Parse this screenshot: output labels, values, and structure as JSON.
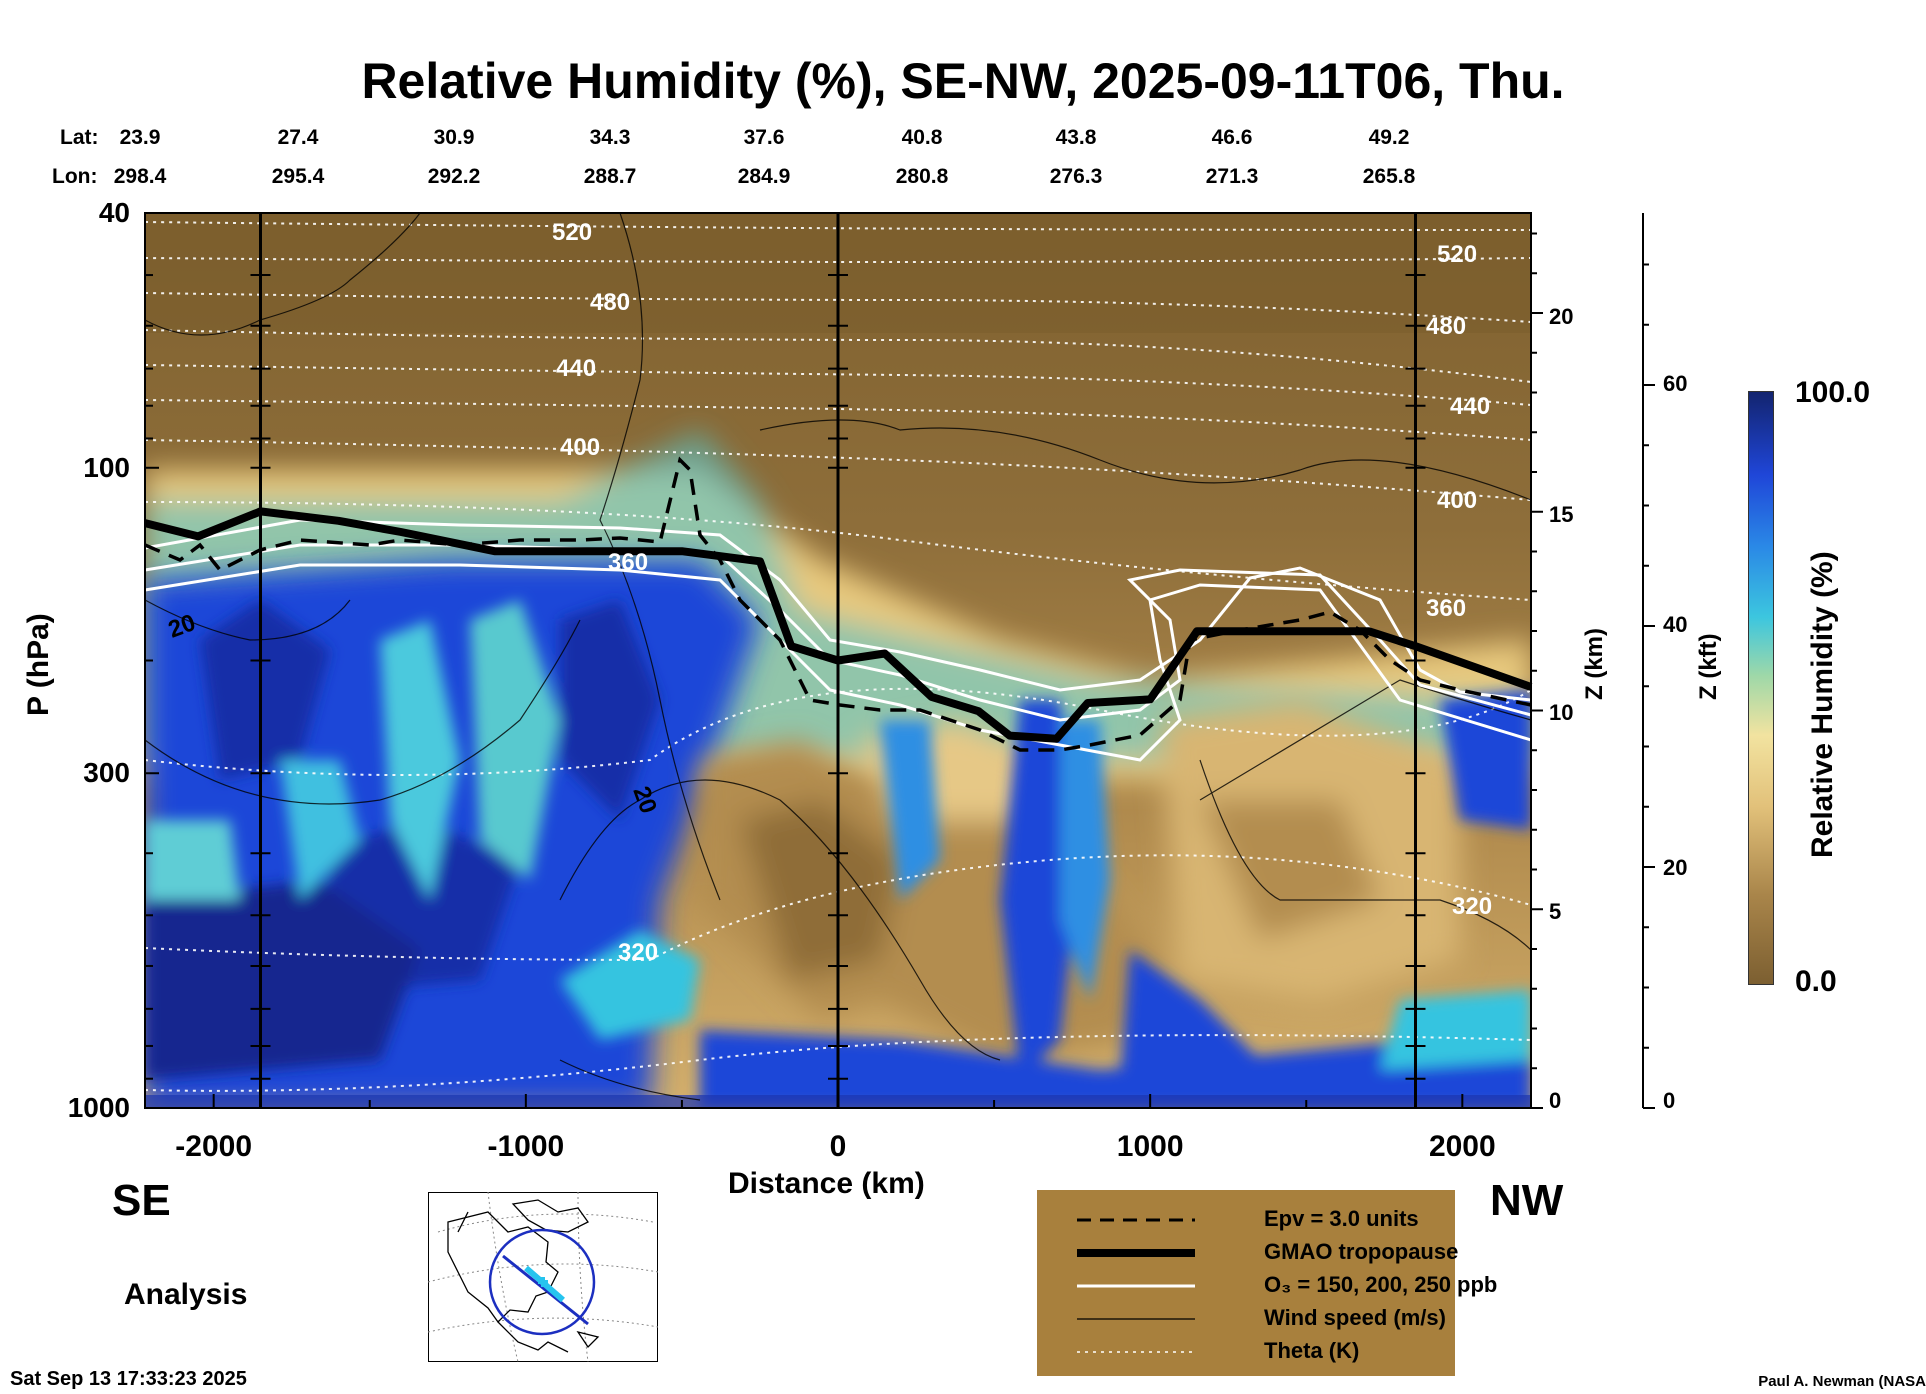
{
  "title": "Relative Humidity (%), SE-NW, 2025-09-11T06, Thu.",
  "lat_label": "Lat:",
  "lon_label": "Lon:",
  "lat_values": [
    "23.9",
    "27.4",
    "30.9",
    "34.3",
    "37.6",
    "40.8",
    "43.8",
    "46.6",
    "49.2"
  ],
  "lon_values": [
    "298.4",
    "295.4",
    "292.2",
    "288.7",
    "284.9",
    "280.8",
    "276.3",
    "271.3",
    "265.8"
  ],
  "left_direction": "SE",
  "right_direction": "NW",
  "analysis_label": "Analysis",
  "timestamp": "Sat Sep 13 17:33:23 2025",
  "credit": "Paul A. Newman (NASA",
  "colors": {
    "dry": "#8b6a35",
    "mid_dry": "#c9a25e",
    "pale": "#e9cf8c",
    "cyan": "#35c8e0",
    "blue": "#1f46d8",
    "dark_blue": "#10228f",
    "legend_bg": "#a8803d"
  },
  "chart_data": {
    "type": "heatmap",
    "variable": "Relative Humidity (%)",
    "xlabel": "Distance (km)",
    "ylabel": "P (hPa)",
    "right_axis_1_label": "Z (km)",
    "right_axis_2_label": "Z (kft)",
    "x_ticks": [
      "-2000",
      "-1000",
      "0",
      "1000",
      "2000"
    ],
    "xlim": [
      -2220,
      2220
    ],
    "y_ticks": [
      "40",
      "100",
      "300",
      "1000"
    ],
    "ylim": [
      1000,
      40
    ],
    "y_scale": "log",
    "z_km_ticks": [
      "0",
      "5",
      "10",
      "15",
      "20"
    ],
    "z_kft_ticks": [
      "0",
      "20",
      "40",
      "60"
    ],
    "colorbar": {
      "label": "Relative Humidity (%)",
      "min_label": "0.0",
      "max_label": "100.0",
      "range": [
        0,
        100
      ]
    },
    "theta_contour_labels": [
      "520",
      "480",
      "440",
      "400",
      "360",
      "320",
      "520",
      "480",
      "440",
      "400",
      "360",
      "320"
    ],
    "wind_contour_labels": [
      "20",
      "20"
    ],
    "vertical_reference_lines_km": [
      -1850,
      0,
      1850
    ],
    "tropopause_hpa": [
      {
        "x": -2220,
        "p": 122
      },
      {
        "x": -2050,
        "p": 128
      },
      {
        "x": -1850,
        "p": 117
      },
      {
        "x": -1600,
        "p": 121
      },
      {
        "x": -1400,
        "p": 126
      },
      {
        "x": -1100,
        "p": 135
      },
      {
        "x": -800,
        "p": 135
      },
      {
        "x": -500,
        "p": 135
      },
      {
        "x": -250,
        "p": 140
      },
      {
        "x": -150,
        "p": 190
      },
      {
        "x": 0,
        "p": 200
      },
      {
        "x": 150,
        "p": 195
      },
      {
        "x": 300,
        "p": 228
      },
      {
        "x": 450,
        "p": 240
      },
      {
        "x": 550,
        "p": 262
      },
      {
        "x": 700,
        "p": 265
      },
      {
        "x": 800,
        "p": 233
      },
      {
        "x": 1000,
        "p": 230
      },
      {
        "x": 1150,
        "p": 180
      },
      {
        "x": 1400,
        "p": 180
      },
      {
        "x": 1700,
        "p": 180
      },
      {
        "x": 1850,
        "p": 190
      },
      {
        "x": 2220,
        "p": 220
      }
    ],
    "legend": [
      {
        "style": "dashed",
        "label": "Epv = 3.0 units"
      },
      {
        "style": "thick",
        "label": "GMAO tropopause"
      },
      {
        "style": "white",
        "label": "O₃ = 150, 200, 250 ppb"
      },
      {
        "style": "thin",
        "label": "Wind speed (m/s)"
      },
      {
        "style": "dotted",
        "label": "Theta (K)"
      }
    ]
  }
}
